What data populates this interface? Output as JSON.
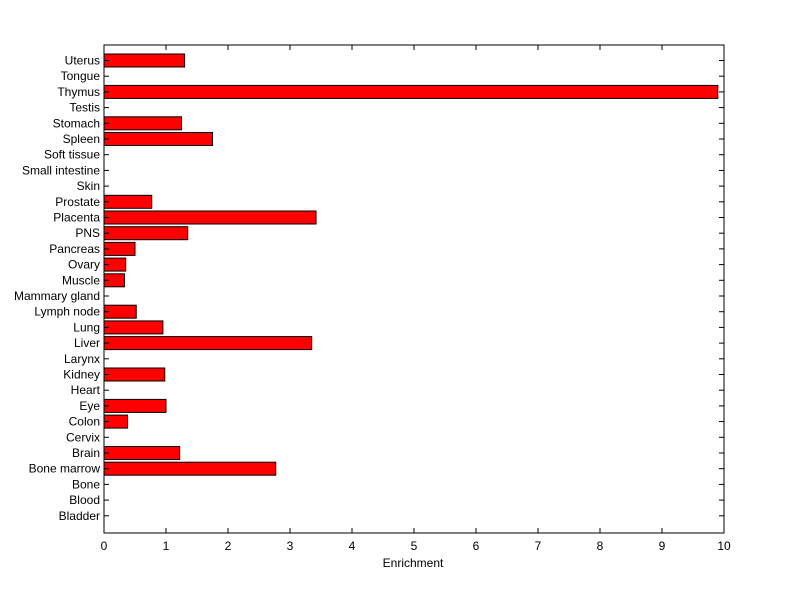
{
  "chart_data": {
    "type": "bar",
    "orientation": "horizontal",
    "categories": [
      "Uterus",
      "Tongue",
      "Thymus",
      "Testis",
      "Stomach",
      "Spleen",
      "Soft tissue",
      "Small intestine",
      "Skin",
      "Prostate",
      "Placenta",
      "PNS",
      "Pancreas",
      "Ovary",
      "Muscle",
      "Mammary gland",
      "Lymph node",
      "Lung",
      "Liver",
      "Larynx",
      "Kidney",
      "Heart",
      "Eye",
      "Colon",
      "Cervix",
      "Brain",
      "Bone marrow",
      "Bone",
      "Blood",
      "Bladder"
    ],
    "values": [
      1.3,
      0,
      9.9,
      0,
      1.25,
      1.75,
      0,
      0,
      0,
      0.77,
      3.42,
      1.35,
      0.5,
      0.35,
      0.33,
      0,
      0.52,
      0.95,
      3.35,
      0,
      0.98,
      0,
      1.0,
      0.38,
      0,
      1.22,
      2.77,
      0,
      0,
      0
    ],
    "xlabel": "Enrichment",
    "xlim": [
      0,
      10
    ],
    "xticks": [
      0,
      1,
      2,
      3,
      4,
      5,
      6,
      7,
      8,
      9,
      10
    ],
    "bar_color": "#ff0000",
    "bar_edge_color": "#000000",
    "grid": false,
    "legend": "none"
  }
}
